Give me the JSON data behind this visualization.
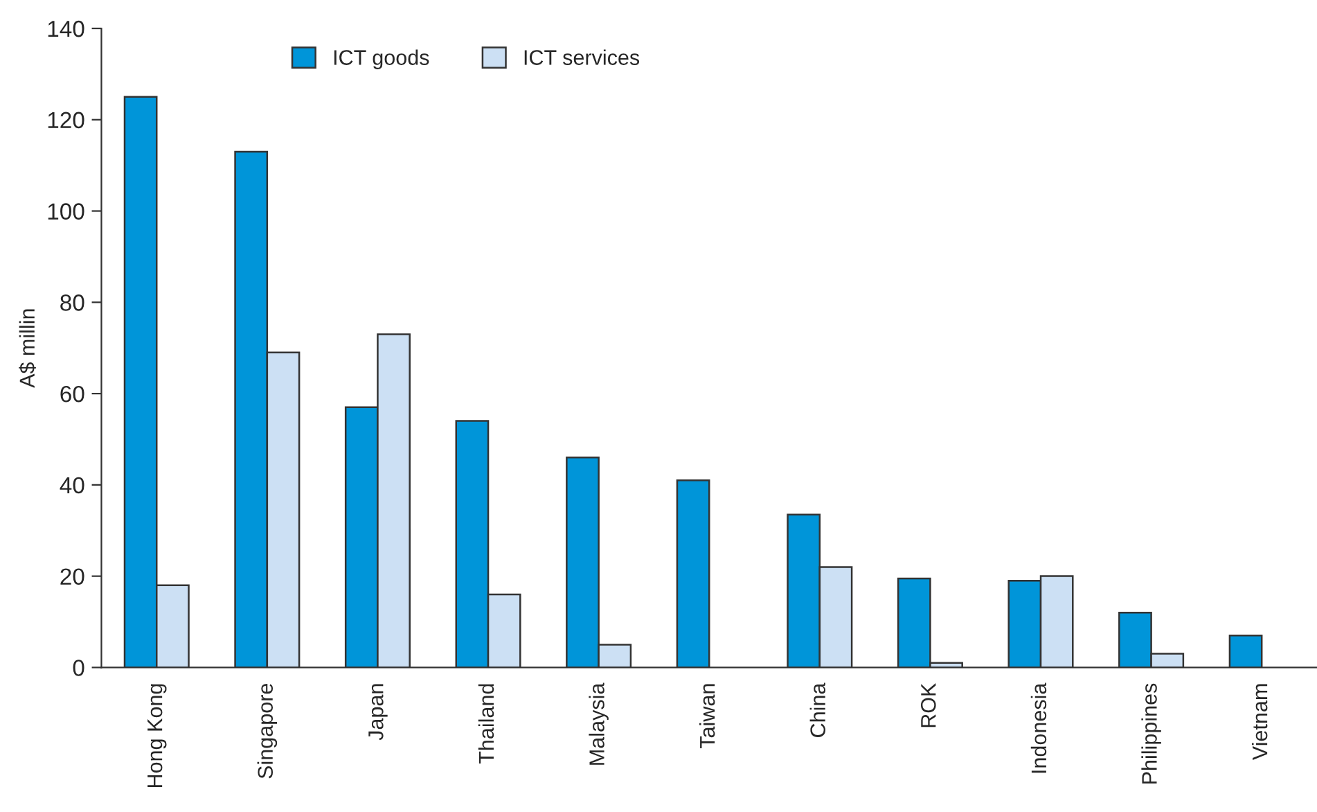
{
  "chart_data": {
    "type": "bar",
    "ylabel": "A$ millin",
    "categories": [
      "Hong Kong",
      "Singapore",
      "Japan",
      "Thailand",
      "Malaysia",
      "Taiwan",
      "China",
      "ROK",
      "Indonesia",
      "Philippines",
      "Vietnam"
    ],
    "series": [
      {
        "name": "ICT goods",
        "color": "#0095d9",
        "values": [
          125,
          113,
          57,
          54,
          46,
          41,
          33.5,
          19.5,
          19,
          12,
          7
        ]
      },
      {
        "name": "ICT services",
        "color": "#cce0f4",
        "values": [
          18,
          69,
          73,
          16,
          5,
          null,
          22,
          1,
          20,
          3,
          null
        ]
      }
    ],
    "ylim": [
      0,
      140
    ],
    "yticks": [
      0,
      20,
      40,
      60,
      80,
      100,
      120,
      140
    ],
    "grid": false,
    "legend": "top"
  }
}
